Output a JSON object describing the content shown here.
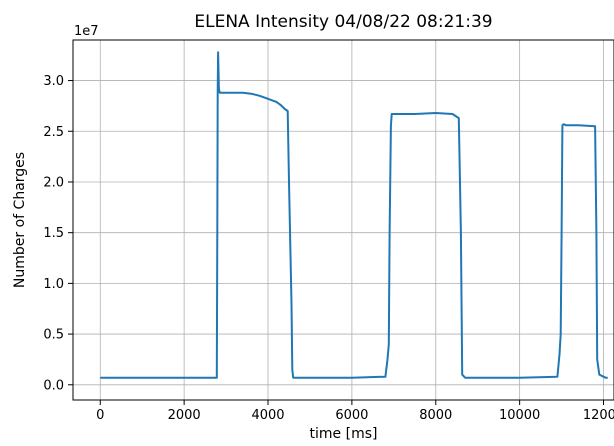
{
  "chart_data": {
    "type": "line",
    "title": "ELENA Intensity 04/08/22 08:21:39",
    "xlabel": "time [ms]",
    "ylabel": "Number of Charges",
    "y_multiplier_label": "1e7",
    "xlim": [
      -650,
      12250
    ],
    "ylim": [
      -0.15,
      3.4
    ],
    "x_ticks": [
      0,
      2000,
      4000,
      6000,
      8000,
      10000,
      12000
    ],
    "x_tick_labels": [
      "0",
      "2000",
      "4000",
      "6000",
      "8000",
      "10000",
      "12000"
    ],
    "y_ticks": [
      0.0,
      0.5,
      1.0,
      1.5,
      2.0,
      2.5,
      3.0
    ],
    "y_tick_labels": [
      "0.0",
      "0.5",
      "1.0",
      "1.5",
      "2.0",
      "2.5",
      "3.0"
    ],
    "grid": true,
    "line_color": "#1f77b4",
    "series": [
      {
        "values_unit": "1e7 charges",
        "x": [
          0,
          2780,
          2790,
          2800,
          2810,
          2830,
          2850,
          3000,
          3200,
          3400,
          3600,
          3800,
          4000,
          4200,
          4300,
          4400,
          4470,
          4500,
          4560,
          4580,
          4600,
          4650,
          5000,
          6000,
          6800,
          6850,
          6880,
          6900,
          6930,
          6950,
          7000,
          7500,
          8000,
          8400,
          8550,
          8600,
          8630,
          8700,
          9000,
          10000,
          10900,
          10950,
          10980,
          11000,
          11020,
          11050,
          11100,
          11400,
          11800,
          11830,
          11850,
          11900,
          12000,
          12050,
          12100
        ],
        "y": [
          0.07,
          0.07,
          1.5,
          2.88,
          3.28,
          2.92,
          2.88,
          2.88,
          2.88,
          2.88,
          2.87,
          2.85,
          2.82,
          2.79,
          2.76,
          2.72,
          2.7,
          2.0,
          0.8,
          0.15,
          0.07,
          0.07,
          0.07,
          0.07,
          0.08,
          0.25,
          0.4,
          1.5,
          2.55,
          2.67,
          2.67,
          2.67,
          2.68,
          2.67,
          2.63,
          1.5,
          0.1,
          0.07,
          0.07,
          0.07,
          0.08,
          0.3,
          0.5,
          1.5,
          2.56,
          2.57,
          2.56,
          2.56,
          2.55,
          1.5,
          0.25,
          0.1,
          0.08,
          0.07,
          0.07
        ]
      }
    ]
  }
}
